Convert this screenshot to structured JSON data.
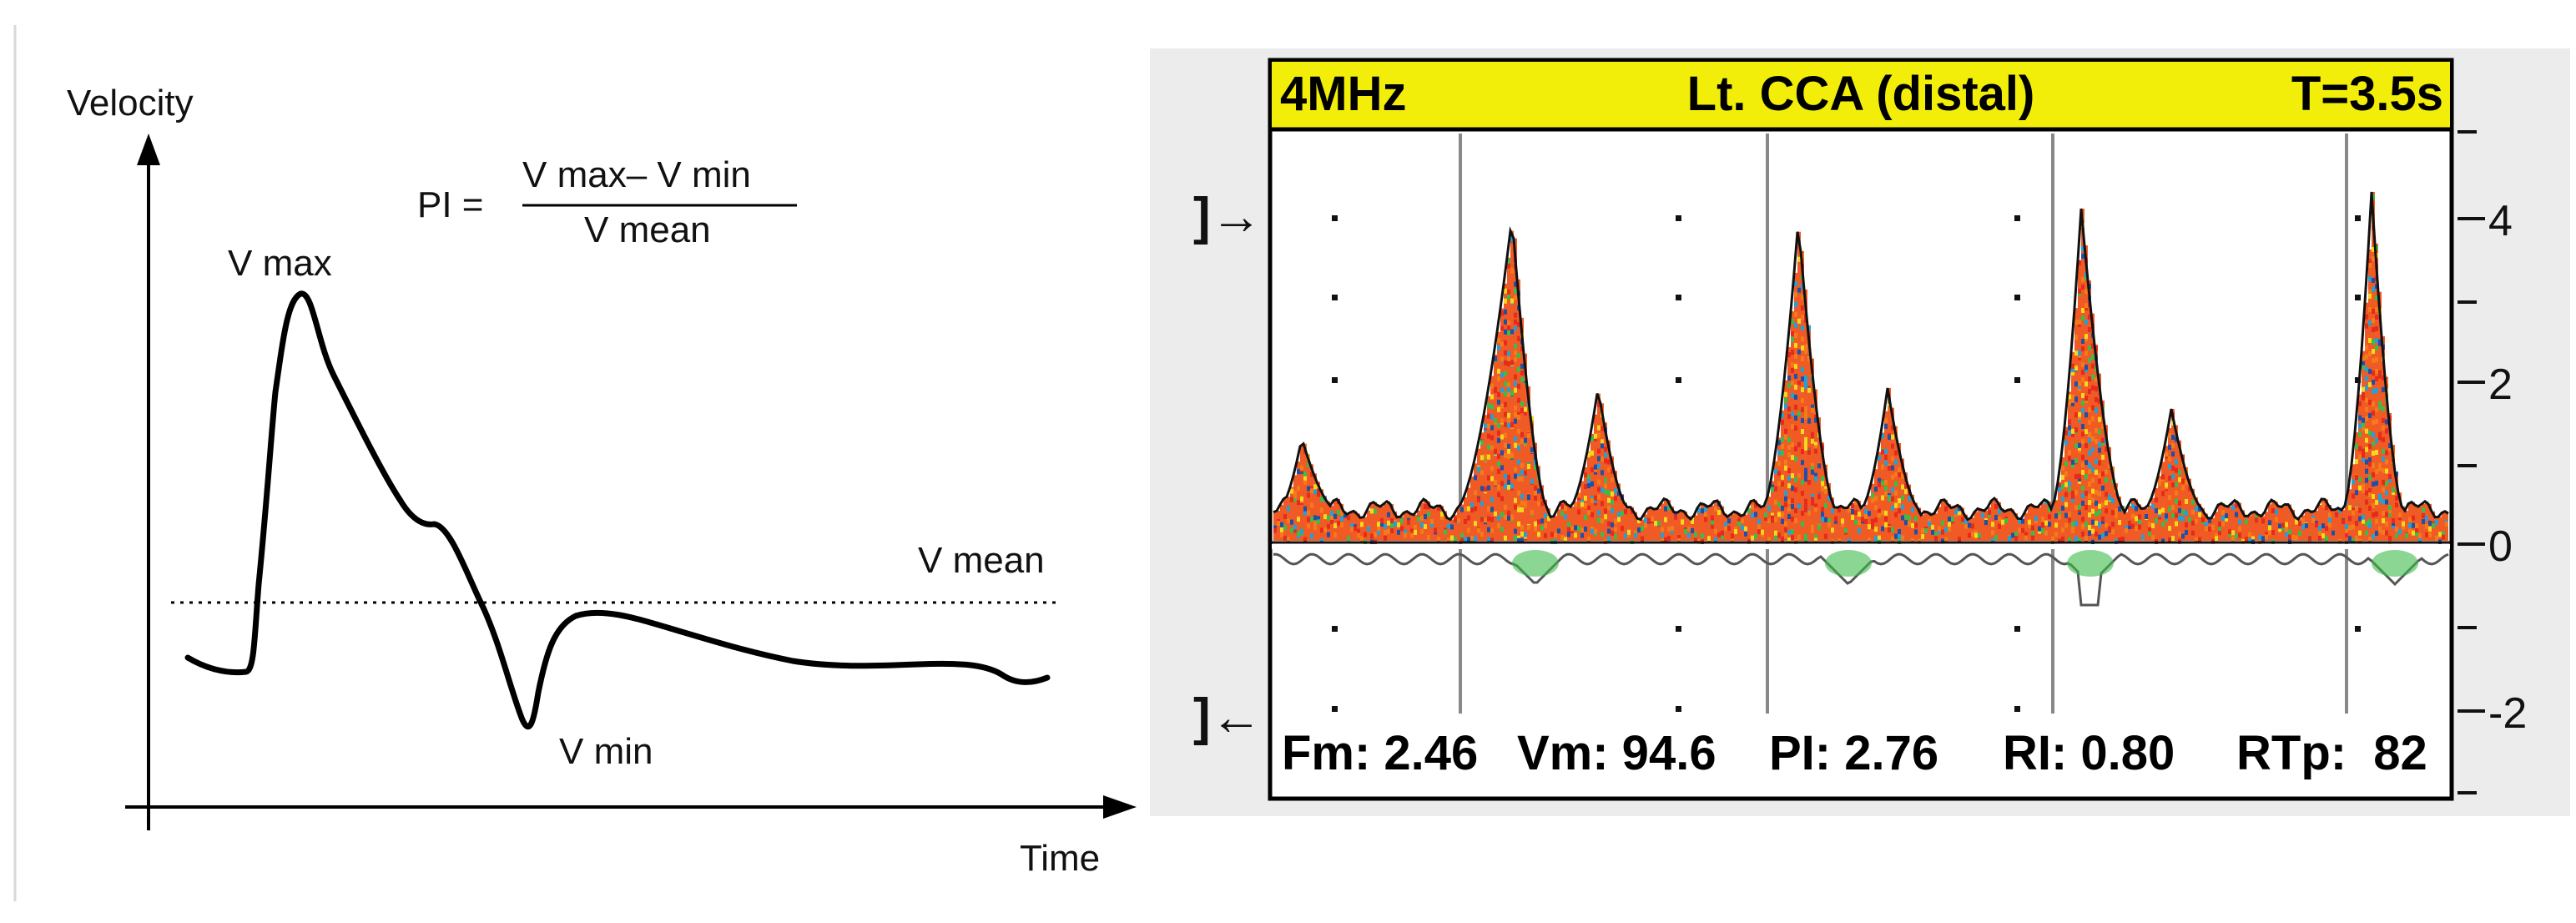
{
  "left_diagram": {
    "y_axis_label": "Velocity",
    "x_axis_label": "Time",
    "formula": {
      "lhs": "PI =",
      "numerator": "V max– V min",
      "denominator": "V mean"
    },
    "v_max_label": "V max",
    "v_min_label": "V min",
    "v_mean_label": "V mean"
  },
  "doppler": {
    "header": {
      "frequency": "4MHz",
      "vessel": "Lt. CCA (distal)",
      "time": "T=3.5s"
    },
    "scale_ticks": [
      "4",
      "2",
      "0",
      "-2"
    ],
    "marker_up": "]→",
    "marker_down": "]←",
    "footer": {
      "fm": "Fm: 2.46",
      "vm": "Vm: 94.6",
      "pi": "PI: 2.76",
      "ri": "RI: 0.80",
      "rtp": "RTp:  82"
    },
    "colors": {
      "header_bg": "#f2ee0a",
      "panel_bg": "#ececec",
      "screen_bg": "#ffffff"
    }
  }
}
